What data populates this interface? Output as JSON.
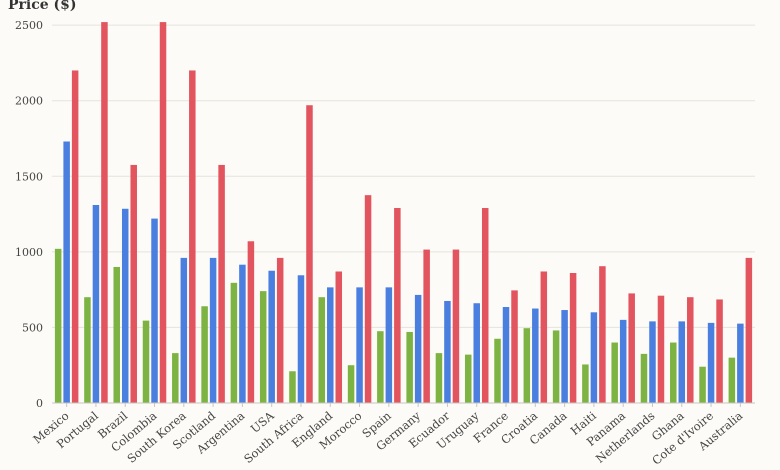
{
  "chart_data": {
    "type": "bar",
    "ylabel": "Price ($)",
    "xlabel": "",
    "ylim": [
      0,
      2600
    ],
    "yticks": [
      0,
      500,
      1000,
      1500,
      2000,
      2500
    ],
    "grid": true,
    "legend": "none",
    "categories": [
      "Mexico",
      "Portugal",
      "Brazil",
      "Colombia",
      "South Korea",
      "Scotland",
      "Argentina",
      "USA",
      "South Africa",
      "England",
      "Morocco",
      "Spain",
      "Germany",
      "Ecuador",
      "Uruguay",
      "France",
      "Croatia",
      "Canada",
      "Haiti",
      "Panama",
      "Netherlands",
      "Ghana",
      "Cote d'Ivoire",
      "Australia"
    ],
    "series": [
      {
        "color": "#7cb342",
        "values": [
          1020,
          700,
          900,
          545,
          330,
          640,
          795,
          740,
          210,
          700,
          250,
          475,
          470,
          330,
          320,
          425,
          495,
          480,
          255,
          400,
          325,
          400,
          240,
          300
        ]
      },
      {
        "color": "#4a7fe0",
        "values": [
          1730,
          1310,
          1285,
          1220,
          960,
          960,
          915,
          875,
          845,
          765,
          765,
          765,
          715,
          675,
          660,
          635,
          625,
          615,
          600,
          550,
          540,
          540,
          530,
          525
        ]
      },
      {
        "color": "#e2545e",
        "values": [
          2200,
          2520,
          1575,
          2520,
          2200,
          1575,
          1070,
          960,
          1970,
          870,
          1375,
          1290,
          1015,
          1015,
          1290,
          745,
          870,
          860,
          905,
          725,
          710,
          700,
          685,
          960
        ]
      }
    ]
  }
}
